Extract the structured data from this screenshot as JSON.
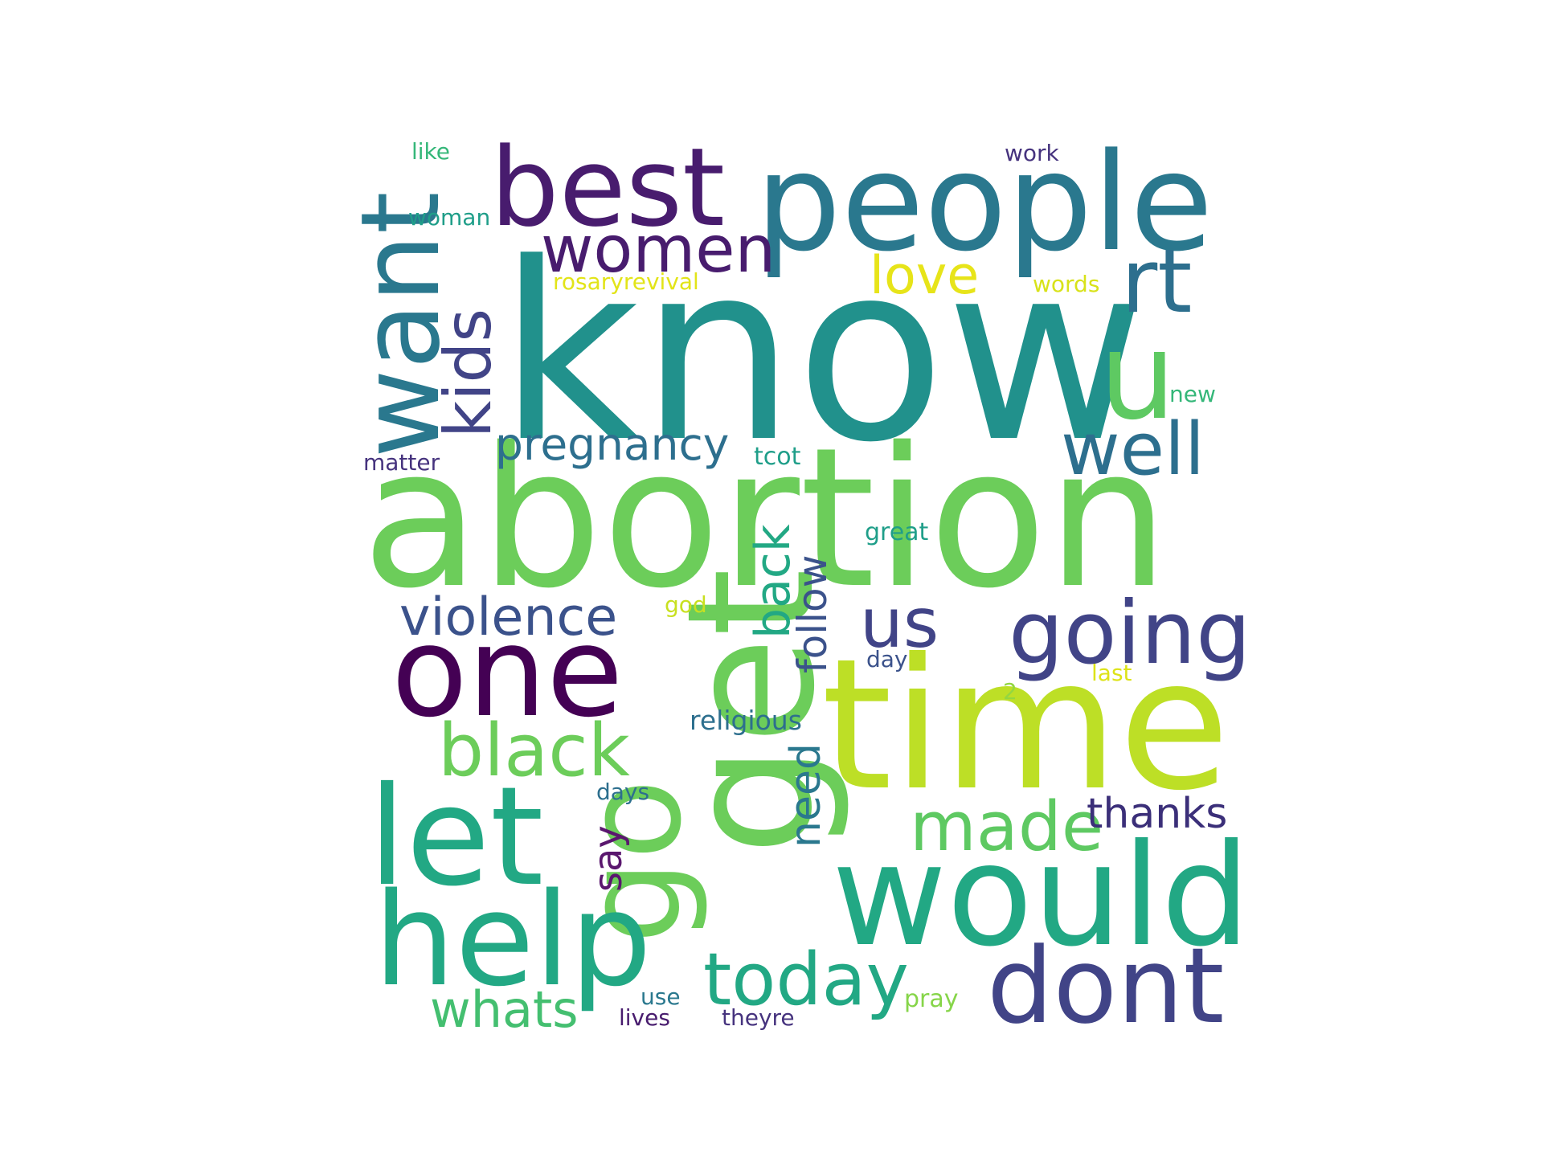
{
  "words": [
    {
      "text": "know",
      "color": "#21918c"
    },
    {
      "text": "abortion",
      "color": "#6ccd5a"
    },
    {
      "text": "get",
      "color": "#6ccd5a"
    },
    {
      "text": "time",
      "color": "#bddf26"
    },
    {
      "text": "people",
      "color": "#2a788e"
    },
    {
      "text": "best",
      "color": "#481c6e"
    },
    {
      "text": "want",
      "color": "#2a788e"
    },
    {
      "text": "go",
      "color": "#6ccd5a"
    },
    {
      "text": "would",
      "color": "#22a884"
    },
    {
      "text": "one",
      "color": "#440154"
    },
    {
      "text": "let",
      "color": "#22a884"
    },
    {
      "text": "help",
      "color": "#22a884"
    },
    {
      "text": "dont",
      "color": "#414487"
    },
    {
      "text": "u",
      "color": "#5ec962"
    },
    {
      "text": "rt",
      "color": "#2d6f8e"
    },
    {
      "text": "women",
      "color": "#481c6e"
    },
    {
      "text": "kids",
      "color": "#414487"
    },
    {
      "text": "well",
      "color": "#2d6f8e"
    },
    {
      "text": "going",
      "color": "#414487"
    },
    {
      "text": "us",
      "color": "#414487"
    },
    {
      "text": "today",
      "color": "#22a884"
    },
    {
      "text": "black",
      "color": "#6ccd5a"
    },
    {
      "text": "made",
      "color": "#5ec962"
    },
    {
      "text": "violence",
      "color": "#3b528b"
    },
    {
      "text": "pregnancy",
      "color": "#2d6f8e"
    },
    {
      "text": "love",
      "color": "#e7e419"
    },
    {
      "text": "back",
      "color": "#22a884"
    },
    {
      "text": "follow",
      "color": "#3b528b"
    },
    {
      "text": "thanks",
      "color": "#3b2f79"
    },
    {
      "text": "whats",
      "color": "#44bf70"
    },
    {
      "text": "need",
      "color": "#2a788e"
    },
    {
      "text": "say",
      "color": "#5a176e"
    },
    {
      "text": "religious",
      "color": "#2d6f8e"
    },
    {
      "text": "rosaryrevival",
      "color": "#e2e418"
    },
    {
      "text": "words",
      "color": "#d8e219"
    },
    {
      "text": "woman",
      "color": "#1f9e89"
    },
    {
      "text": "like",
      "color": "#35b779"
    },
    {
      "text": "work",
      "color": "#46337e"
    },
    {
      "text": "new",
      "color": "#35b779"
    },
    {
      "text": "matter",
      "color": "#46337e"
    },
    {
      "text": "tcot",
      "color": "#1f9e89"
    },
    {
      "text": "great",
      "color": "#1f9e89"
    },
    {
      "text": "god",
      "color": "#c8e020"
    },
    {
      "text": "day",
      "color": "#3b528b"
    },
    {
      "text": "last",
      "color": "#dde318"
    },
    {
      "text": "2",
      "color": "#93d741"
    },
    {
      "text": "days",
      "color": "#2d6f8e"
    },
    {
      "text": "use",
      "color": "#2a788e"
    },
    {
      "text": "lives",
      "color": "#481c6e"
    },
    {
      "text": "theyre",
      "color": "#46337e"
    },
    {
      "text": "pray",
      "color": "#86d549"
    }
  ]
}
